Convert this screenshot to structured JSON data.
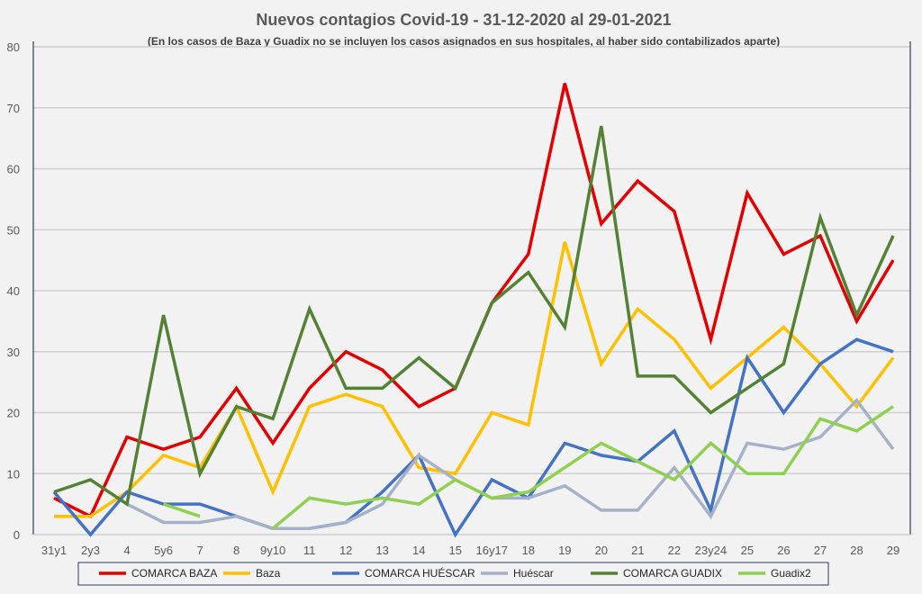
{
  "chart_data": {
    "type": "line",
    "title": "Nuevos contagios Covid-19 - 31-12-2020 al 29-01-2021",
    "subtitle": "(En los casos de Baza y Guadix no se incluyen los casos asignados en sus hospitales, al haber sido contabilizados aparte)",
    "xlabel": "",
    "ylabel": "",
    "ylim": [
      0,
      80
    ],
    "yticks": [
      0,
      10,
      20,
      30,
      40,
      50,
      60,
      70,
      80
    ],
    "grid": true,
    "legend_position": "bottom",
    "categories": [
      "31y1",
      "2y3",
      "4",
      "5y6",
      "7",
      "8",
      "9y10",
      "11",
      "12",
      "13",
      "14",
      "15",
      "16y17",
      "18",
      "19",
      "20",
      "21",
      "22",
      "23y24",
      "25",
      "26",
      "27",
      "28",
      "29"
    ],
    "series": [
      {
        "name": "COMARCA BAZA",
        "color": "#e40000",
        "values": [
          6,
          3,
          16,
          14,
          16,
          24,
          15,
          24,
          30,
          27,
          21,
          24,
          38,
          46,
          74,
          51,
          58,
          53,
          32,
          56,
          46,
          49,
          35,
          45
        ]
      },
      {
        "name": "Baza",
        "color": "#ffc000",
        "values": [
          3,
          3,
          7,
          13,
          11,
          21,
          7,
          21,
          23,
          21,
          11,
          10,
          20,
          18,
          48,
          28,
          37,
          32,
          24,
          29,
          34,
          28,
          21,
          29
        ]
      },
      {
        "name": "COMARCA HUÉSCAR",
        "color": "#4472c4",
        "values": [
          7,
          0,
          7,
          5,
          5,
          3,
          1,
          1,
          2,
          7,
          13,
          0,
          9,
          6,
          15,
          13,
          12,
          17,
          4,
          29,
          20,
          28,
          32,
          30
        ]
      },
      {
        "name": "Huéscar",
        "color": "#a5b1c8",
        "values": [
          null,
          null,
          5,
          2,
          2,
          3,
          1,
          1,
          2,
          5,
          13,
          9,
          6,
          6,
          8,
          4,
          4,
          11,
          3,
          15,
          14,
          16,
          22,
          14
        ]
      },
      {
        "name": "COMARCA GUADIX",
        "color": "#548235",
        "values": [
          7,
          9,
          5,
          36,
          10,
          21,
          19,
          37,
          24,
          24,
          29,
          24,
          38,
          43,
          34,
          67,
          26,
          26,
          20,
          24,
          28,
          52,
          36,
          49
        ]
      },
      {
        "name": "Guadix2",
        "color": "#8fd14f",
        "values": [
          null,
          null,
          null,
          5,
          3,
          null,
          1,
          6,
          5,
          6,
          5,
          9,
          6,
          7,
          11,
          15,
          12,
          9,
          15,
          10,
          10,
          19,
          17,
          21
        ]
      }
    ]
  }
}
